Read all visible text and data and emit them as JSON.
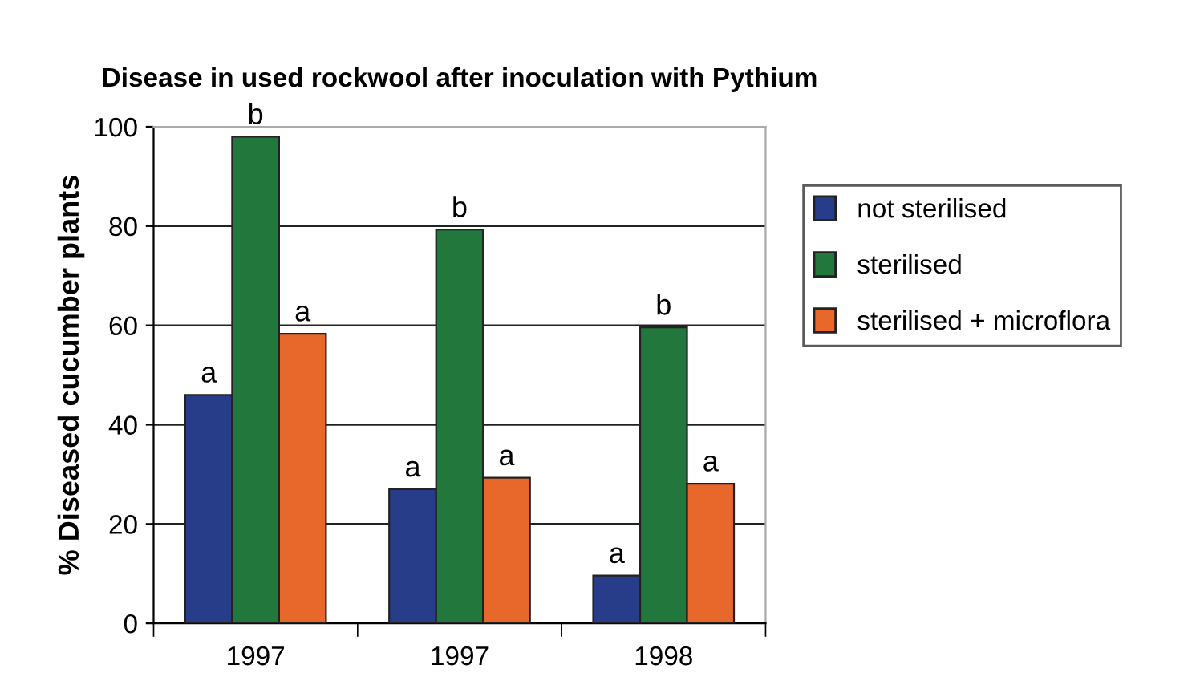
{
  "chart_data": {
    "type": "bar",
    "title": "Disease in used rockwool after inoculation with Pythium",
    "ylabel": "% Diseased cucumber plants",
    "categories": [
      "1997",
      "1997",
      "1998"
    ],
    "series": [
      {
        "name": "not sterilised",
        "color": "#283d8a",
        "values": [
          46,
          27,
          9.6
        ],
        "value_labels": [
          "a",
          "a",
          "a"
        ]
      },
      {
        "name": "sterilised",
        "color": "#22773c",
        "values": [
          98,
          79.3,
          59.6
        ],
        "value_labels": [
          "b",
          "b",
          "b"
        ]
      },
      {
        "name": "sterilised + microflora",
        "color": "#e8672a",
        "values": [
          58.3,
          29.3,
          28.1
        ],
        "value_labels": [
          "a",
          "a",
          "a"
        ]
      }
    ],
    "ylim": [
      0,
      100
    ],
    "yticks": [
      0,
      20,
      40,
      60,
      80,
      100
    ],
    "grid": "y",
    "legend": "right"
  }
}
